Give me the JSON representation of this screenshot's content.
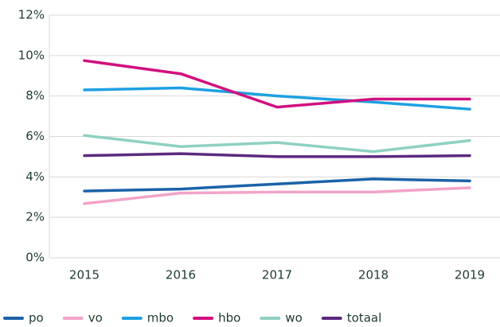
{
  "chart_data": {
    "type": "line",
    "categories": [
      "2015",
      "2016",
      "2017",
      "2018",
      "2019"
    ],
    "series": [
      {
        "name": "po",
        "color": "#1b62a8",
        "values": [
          3.3,
          3.4,
          3.65,
          3.9,
          3.8
        ]
      },
      {
        "name": "vo",
        "color": "#f2a3c9",
        "values": [
          2.68,
          3.2,
          3.25,
          3.25,
          3.46
        ]
      },
      {
        "name": "mbo",
        "color": "#1da1e2",
        "values": [
          8.3,
          8.4,
          8.0,
          7.7,
          7.35
        ]
      },
      {
        "name": "hbo",
        "color": "#d1107f",
        "values": [
          9.75,
          9.1,
          7.45,
          7.85,
          7.85
        ]
      },
      {
        "name": "wo",
        "color": "#8fd0c2",
        "values": [
          6.05,
          5.5,
          5.7,
          5.25,
          5.8
        ]
      },
      {
        "name": "totaal",
        "color": "#5d2a7f",
        "values": [
          5.05,
          5.15,
          5.0,
          5.0,
          5.05
        ]
      }
    ],
    "ylim": [
      0,
      12
    ],
    "yticks": [
      {
        "value": 0,
        "label": "0%"
      },
      {
        "value": 2,
        "label": "2%"
      },
      {
        "value": 4,
        "label": "4%"
      },
      {
        "value": 6,
        "label": "6%"
      },
      {
        "value": 8,
        "label": "8%"
      },
      {
        "value": 10,
        "label": "10%"
      },
      {
        "value": 12,
        "label": "12%"
      }
    ],
    "grid": true,
    "legend": "bottom"
  }
}
